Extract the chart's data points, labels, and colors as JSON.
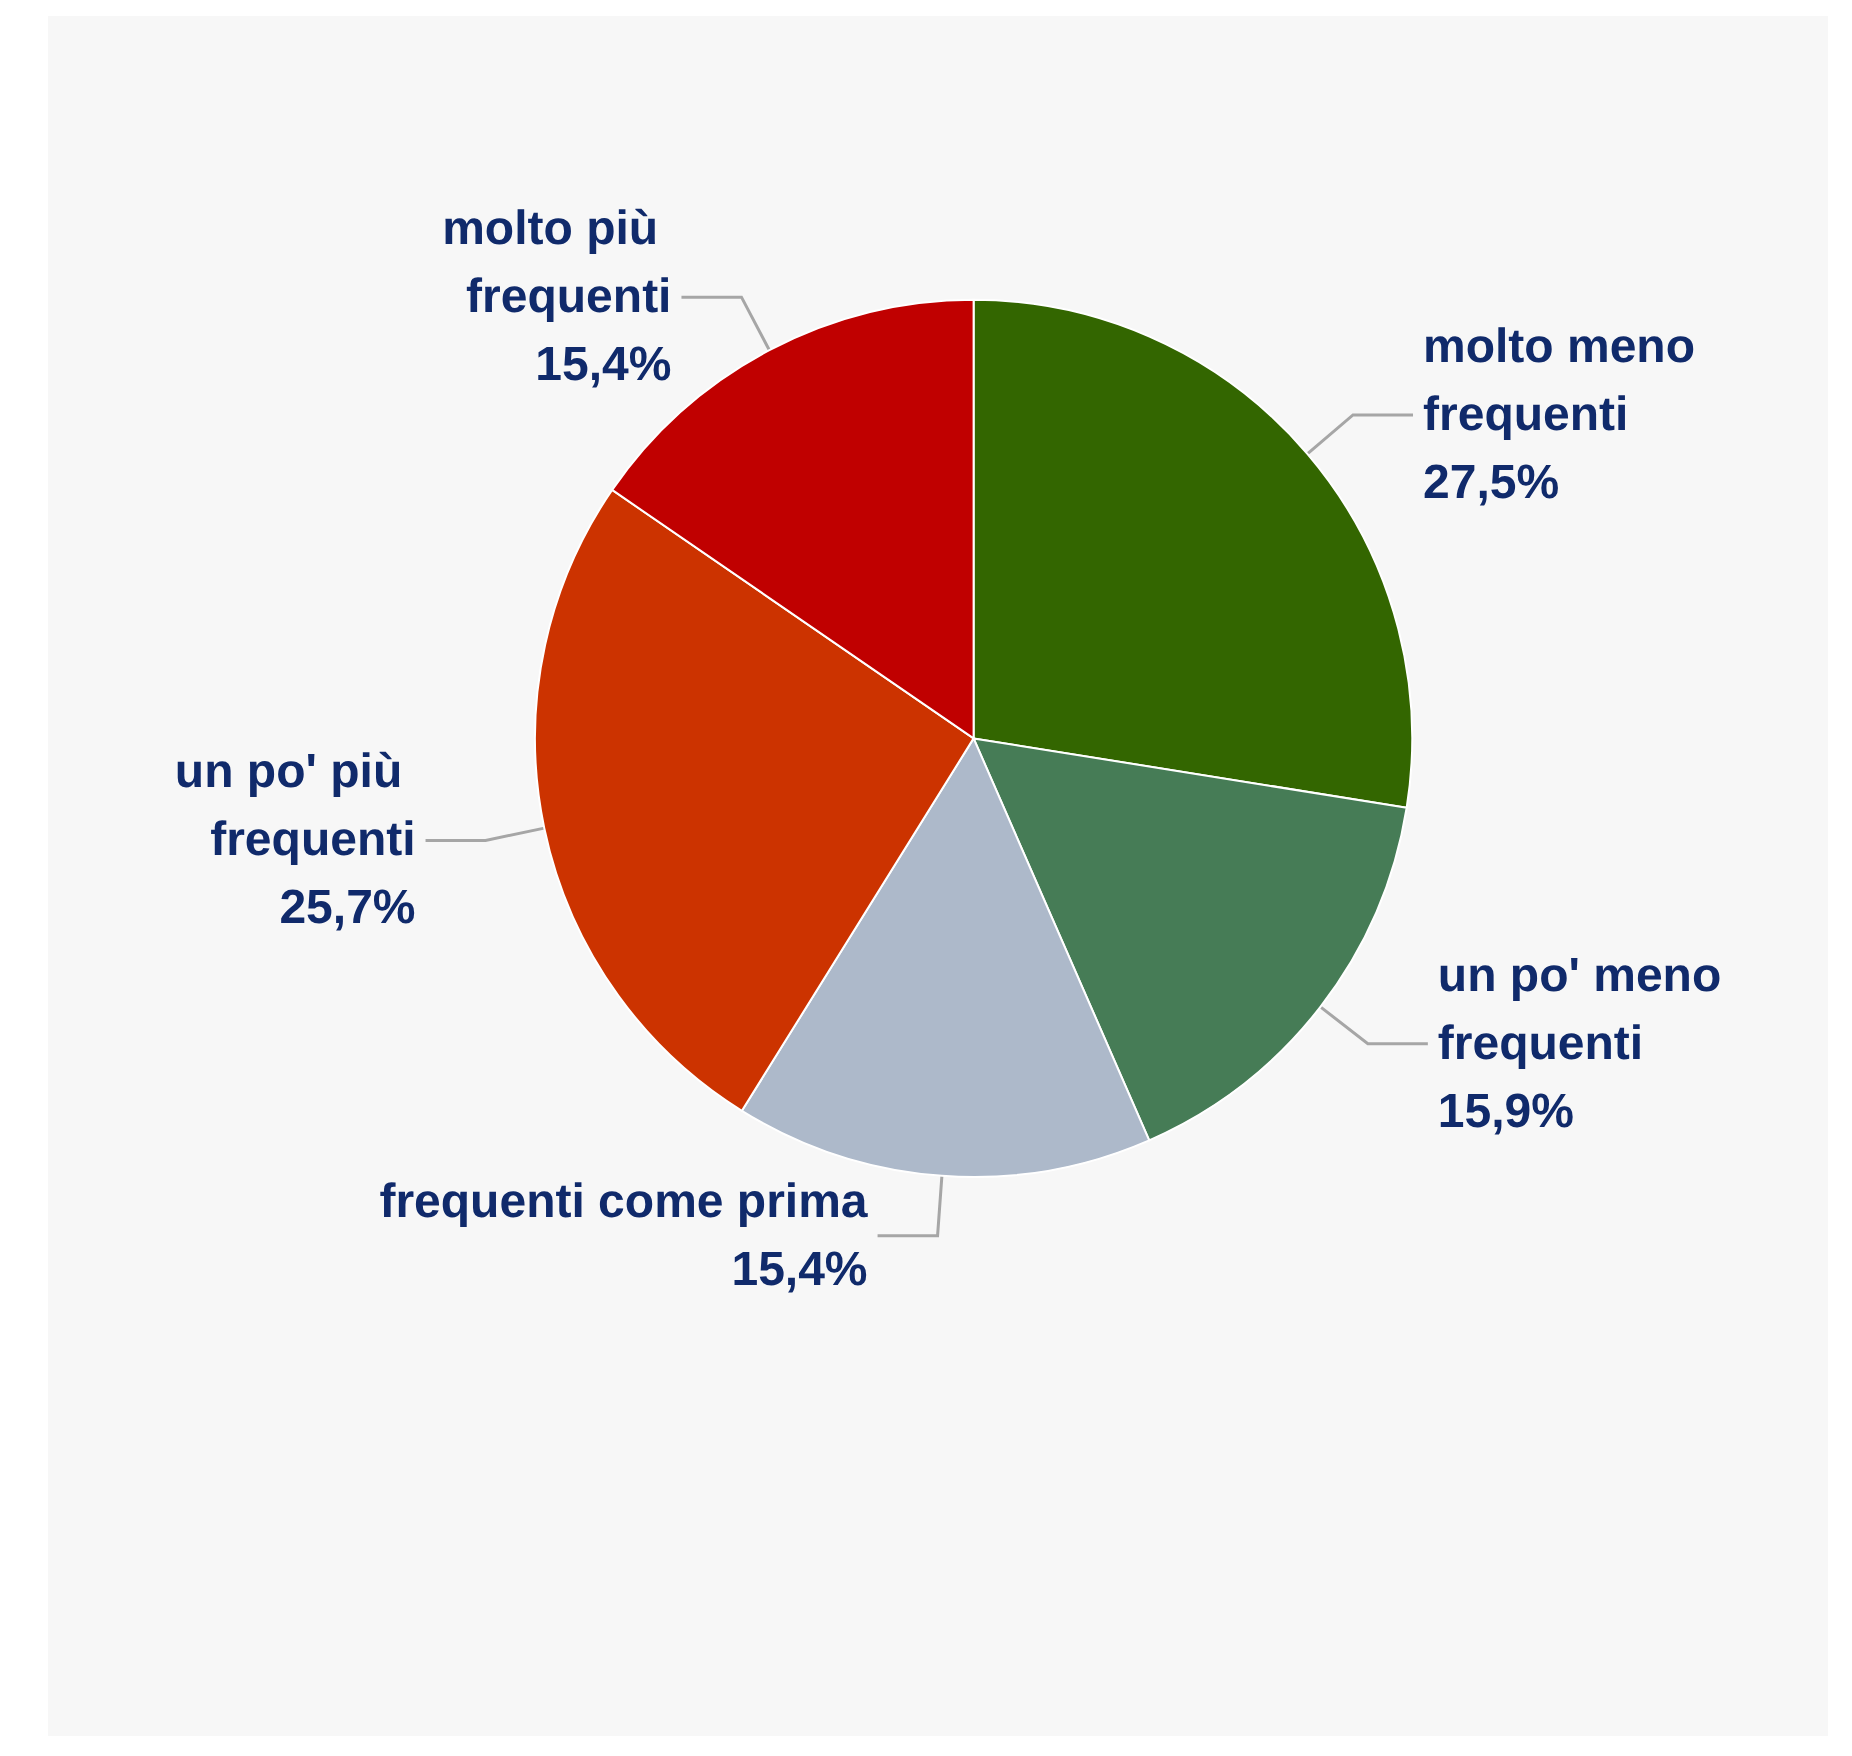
{
  "chart_data": {
    "type": "pie",
    "categories": [
      "molto meno frequenti",
      "un po' meno frequenti",
      "frequenti come prima",
      "un po' più frequenti",
      "molto più frequenti"
    ],
    "values": [
      27.5,
      15.9,
      15.4,
      25.7,
      15.4
    ],
    "value_labels": [
      "27,5%",
      "15,9%",
      "15,4%",
      "25,7%",
      "15,4%"
    ],
    "colors": [
      "#336600",
      "#467c56",
      "#adb9ca",
      "#cc3300",
      "#c00000"
    ],
    "legend": false
  }
}
